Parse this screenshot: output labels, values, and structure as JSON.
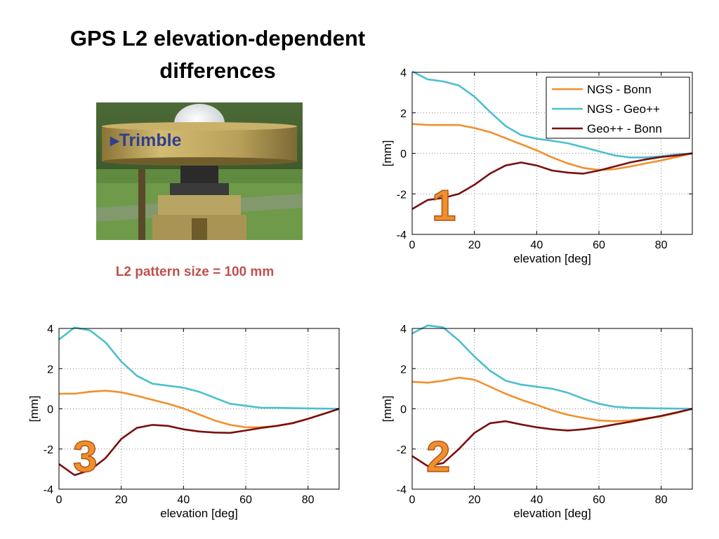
{
  "slide": {
    "title_line1": "GPS L2 elevation-dependent",
    "title_line2": "differences",
    "caption": "L2 pattern size = 100 mm",
    "photo_brand_text": "Trimble"
  },
  "colors": {
    "ngs_bonn": "#f0902c",
    "ngs_geo": "#4cbfcf",
    "geo_bonn": "#7a0f0f",
    "badge": "#f0902c",
    "caption": "#c0504d"
  },
  "chart_data": [
    {
      "type": "line",
      "badge": "1",
      "xlabel": "elevation [deg]",
      "ylabel": "[mm]",
      "xlim": [
        0,
        90
      ],
      "ylim": [
        -4,
        4
      ],
      "xticks": [
        "0",
        "20",
        "40",
        "60",
        "80"
      ],
      "yticks": [
        "-4",
        "-2",
        "0",
        "2",
        "4"
      ],
      "grid": true,
      "legend": "top-right",
      "series": [
        {
          "name": "NGS - Bonn",
          "x": [
            0,
            5,
            10,
            15,
            20,
            25,
            30,
            35,
            40,
            45,
            50,
            55,
            60,
            65,
            70,
            75,
            80,
            85,
            90
          ],
          "values": [
            1.45,
            1.4,
            1.4,
            1.4,
            1.25,
            1.05,
            0.75,
            0.45,
            0.15,
            -0.2,
            -0.5,
            -0.72,
            -0.82,
            -0.78,
            -0.65,
            -0.5,
            -0.35,
            -0.18,
            0
          ]
        },
        {
          "name": "NGS - Geo++",
          "x": [
            0,
            5,
            10,
            15,
            20,
            25,
            30,
            35,
            40,
            45,
            50,
            55,
            60,
            65,
            70,
            75,
            80,
            85,
            90
          ],
          "values": [
            4.05,
            3.65,
            3.55,
            3.35,
            2.8,
            2.05,
            1.35,
            0.9,
            0.72,
            0.62,
            0.5,
            0.3,
            0.1,
            -0.1,
            -0.2,
            -0.2,
            -0.15,
            -0.05,
            0
          ]
        },
        {
          "name": "Geo++ - Bonn",
          "x": [
            0,
            5,
            10,
            15,
            20,
            25,
            30,
            35,
            40,
            45,
            50,
            55,
            60,
            65,
            70,
            75,
            80,
            85,
            90
          ],
          "values": [
            -2.75,
            -2.3,
            -2.2,
            -2.0,
            -1.55,
            -1.0,
            -0.6,
            -0.45,
            -0.6,
            -0.85,
            -0.95,
            -1.0,
            -0.85,
            -0.65,
            -0.45,
            -0.3,
            -0.18,
            -0.1,
            0
          ]
        }
      ]
    },
    {
      "type": "line",
      "badge": "3",
      "xlabel": "elevation [deg]",
      "ylabel": "[mm]",
      "xlim": [
        0,
        90
      ],
      "ylim": [
        -4,
        4
      ],
      "xticks": [
        "0",
        "20",
        "40",
        "60",
        "80"
      ],
      "yticks": [
        "-4",
        "-2",
        "0",
        "2",
        "4"
      ],
      "grid": true,
      "series": [
        {
          "name": "NGS - Bonn",
          "x": [
            0,
            5,
            10,
            15,
            20,
            25,
            30,
            35,
            40,
            45,
            50,
            55,
            60,
            65,
            70,
            75,
            80,
            85,
            90
          ],
          "values": [
            0.75,
            0.75,
            0.85,
            0.9,
            0.82,
            0.65,
            0.45,
            0.25,
            0.02,
            -0.28,
            -0.58,
            -0.8,
            -0.92,
            -0.92,
            -0.85,
            -0.7,
            -0.5,
            -0.25,
            0
          ]
        },
        {
          "name": "NGS - Geo++",
          "x": [
            0,
            5,
            10,
            15,
            20,
            25,
            30,
            35,
            40,
            45,
            50,
            55,
            60,
            65,
            70,
            75,
            80,
            85,
            90
          ],
          "values": [
            3.45,
            4.05,
            3.9,
            3.3,
            2.35,
            1.65,
            1.25,
            1.15,
            1.05,
            0.85,
            0.55,
            0.25,
            0.15,
            0.05,
            0.05,
            0.03,
            0.02,
            0.01,
            0
          ]
        },
        {
          "name": "Geo++ - Bonn",
          "x": [
            0,
            5,
            10,
            15,
            20,
            25,
            30,
            35,
            40,
            45,
            50,
            55,
            60,
            65,
            70,
            75,
            80,
            85,
            90
          ],
          "values": [
            -2.75,
            -3.3,
            -3.05,
            -2.45,
            -1.5,
            -0.95,
            -0.8,
            -0.85,
            -1.02,
            -1.13,
            -1.18,
            -1.2,
            -1.08,
            -0.95,
            -0.85,
            -0.72,
            -0.5,
            -0.25,
            0
          ]
        }
      ]
    },
    {
      "type": "line",
      "badge": "2",
      "xlabel": "elevation [deg]",
      "ylabel": "[mm]",
      "xlim": [
        0,
        90
      ],
      "ylim": [
        -4,
        4
      ],
      "xticks": [
        "0",
        "20",
        "40",
        "60",
        "80"
      ],
      "yticks": [
        "-4",
        "-2",
        "0",
        "2",
        "4"
      ],
      "grid": true,
      "series": [
        {
          "name": "NGS - Bonn",
          "x": [
            0,
            5,
            10,
            15,
            20,
            25,
            30,
            35,
            40,
            45,
            50,
            55,
            60,
            65,
            70,
            75,
            80,
            85,
            90
          ],
          "values": [
            1.35,
            1.3,
            1.4,
            1.55,
            1.45,
            1.1,
            0.75,
            0.45,
            0.2,
            -0.08,
            -0.3,
            -0.45,
            -0.58,
            -0.62,
            -0.58,
            -0.48,
            -0.38,
            -0.2,
            0
          ]
        },
        {
          "name": "NGS - Geo++",
          "x": [
            0,
            5,
            10,
            15,
            20,
            25,
            30,
            35,
            40,
            45,
            50,
            55,
            60,
            65,
            70,
            75,
            80,
            85,
            90
          ],
          "values": [
            3.75,
            4.15,
            4.05,
            3.4,
            2.6,
            1.9,
            1.4,
            1.2,
            1.1,
            1.0,
            0.8,
            0.5,
            0.25,
            0.1,
            0.05,
            0.03,
            0.02,
            0.01,
            0
          ]
        },
        {
          "name": "Geo++ - Bonn",
          "x": [
            0,
            5,
            10,
            15,
            20,
            25,
            30,
            35,
            40,
            45,
            50,
            55,
            60,
            65,
            70,
            75,
            80,
            85,
            90
          ],
          "values": [
            -2.35,
            -2.85,
            -2.7,
            -2.0,
            -1.2,
            -0.72,
            -0.62,
            -0.78,
            -0.92,
            -1.02,
            -1.08,
            -1.02,
            -0.92,
            -0.78,
            -0.65,
            -0.5,
            -0.35,
            -0.18,
            0
          ]
        }
      ]
    }
  ]
}
